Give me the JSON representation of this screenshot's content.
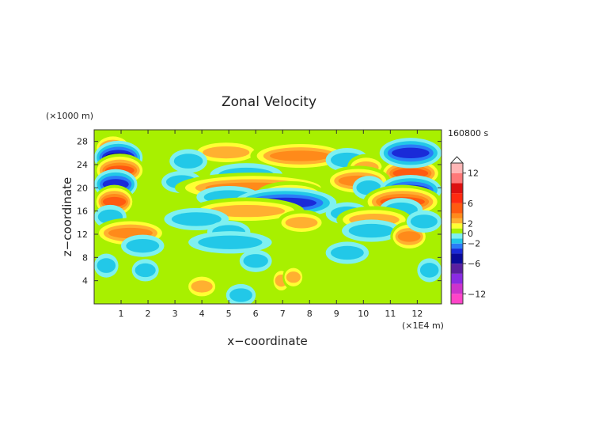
{
  "chart_data": {
    "type": "heatmap",
    "title": "Zonal Velocity",
    "xlabel": "x−coordinate",
    "ylabel": "z−coordinate",
    "x_unit": "(×1E4 m)",
    "y_unit": "(×1000 m)",
    "time_label": "160800 s",
    "xlim": [
      0,
      12.9
    ],
    "ylim": [
      0,
      30
    ],
    "x_ticks": [
      "1",
      "2",
      "3",
      "4",
      "5",
      "6",
      "7",
      "8",
      "9",
      "10",
      "11",
      "12"
    ],
    "y_ticks": [
      "4",
      "8",
      "12",
      "16",
      "20",
      "24",
      "28"
    ],
    "colorbar": {
      "labels": [
        "12",
        "6",
        "2",
        "0",
        "−2",
        "−6",
        "−12"
      ],
      "levels": [
        -14,
        -12,
        -10,
        -8,
        -6,
        -4,
        -3,
        -2,
        -1,
        0,
        1,
        2,
        3,
        4,
        6,
        8,
        10,
        12,
        14
      ],
      "colors": [
        "#ff44c8",
        "#cc33cc",
        "#8a2be2",
        "#5a1fa0",
        "#0a0a9a",
        "#1a2ad8",
        "#2a7cf8",
        "#22c8e8",
        "#7ef0f0",
        "#a8f000",
        "#ffff33",
        "#ffb030",
        "#ff8a1a",
        "#ff5a10",
        "#ff2a10",
        "#dd1010",
        "#ff7878",
        "#ffb6b6"
      ]
    },
    "bands": [
      {
        "z": 26.8,
        "x0": 0.0,
        "x1": 1.4,
        "v": 4
      },
      {
        "z": 25.2,
        "x0": 0.0,
        "x1": 1.8,
        "v": -5
      },
      {
        "z": 23.0,
        "x0": 0.0,
        "x1": 1.9,
        "v": 5
      },
      {
        "z": 20.6,
        "x0": 0.0,
        "x1": 1.6,
        "v": -4
      },
      {
        "z": 17.6,
        "x0": 0.0,
        "x1": 1.5,
        "v": 5
      },
      {
        "z": 15.0,
        "x0": 0.0,
        "x1": 1.2,
        "v": -2
      },
      {
        "z": 12.2,
        "x0": 0.0,
        "x1": 2.7,
        "v": 4
      },
      {
        "z": 10.0,
        "x0": 1.0,
        "x1": 2.6,
        "v": -1.5
      },
      {
        "z": 6.6,
        "x0": 0.0,
        "x1": 0.9,
        "v": -2
      },
      {
        "z": 5.8,
        "x0": 1.4,
        "x1": 2.4,
        "v": -1.5
      },
      {
        "z": 26.1,
        "x0": 3.6,
        "x1": 6.2,
        "v": 3
      },
      {
        "z": 25.5,
        "x0": 5.8,
        "x1": 9.5,
        "v": 4
      },
      {
        "z": 24.6,
        "x0": 2.8,
        "x1": 4.2,
        "v": -2
      },
      {
        "z": 22.2,
        "x0": 4.3,
        "x1": 7.0,
        "v": -2
      },
      {
        "z": 21.0,
        "x0": 2.5,
        "x1": 4.0,
        "v": -1.5
      },
      {
        "z": 20.0,
        "x0": 3.0,
        "x1": 8.8,
        "v": 4
      },
      {
        "z": 18.8,
        "x0": 6.0,
        "x1": 8.6,
        "v": 3
      },
      {
        "z": 18.4,
        "x0": 3.8,
        "x1": 6.2,
        "v": -1.5
      },
      {
        "z": 17.4,
        "x0": 5.2,
        "x1": 9.0,
        "v": -4
      },
      {
        "z": 16.0,
        "x0": 3.5,
        "x1": 7.8,
        "v": 3
      },
      {
        "z": 14.6,
        "x0": 2.6,
        "x1": 5.0,
        "v": -1.5
      },
      {
        "z": 14.0,
        "x0": 6.8,
        "x1": 8.6,
        "v": 2.5
      },
      {
        "z": 12.4,
        "x0": 4.2,
        "x1": 5.8,
        "v": -1.5
      },
      {
        "z": 10.6,
        "x0": 3.5,
        "x1": 6.6,
        "v": -1.5
      },
      {
        "z": 7.4,
        "x0": 5.4,
        "x1": 6.6,
        "v": -1.5
      },
      {
        "z": 4.0,
        "x0": 6.6,
        "x1": 7.3,
        "v": 3
      },
      {
        "z": 3.0,
        "x0": 3.4,
        "x1": 4.6,
        "v": 3
      },
      {
        "z": 1.5,
        "x0": 4.9,
        "x1": 6.0,
        "v": -1.5
      },
      {
        "z": 24.8,
        "x0": 8.6,
        "x1": 10.2,
        "v": -2
      },
      {
        "z": 23.5,
        "x0": 9.4,
        "x1": 10.8,
        "v": 3
      },
      {
        "z": 22.5,
        "x0": 10.6,
        "x1": 12.9,
        "v": 5
      },
      {
        "z": 26.0,
        "x0": 10.6,
        "x1": 12.9,
        "v": -4
      },
      {
        "z": 21.2,
        "x0": 8.6,
        "x1": 11.0,
        "v": 4
      },
      {
        "z": 20.0,
        "x0": 9.6,
        "x1": 10.8,
        "v": -2
      },
      {
        "z": 19.6,
        "x0": 10.6,
        "x1": 12.9,
        "v": -4
      },
      {
        "z": 17.6,
        "x0": 10.0,
        "x1": 12.9,
        "v": 5
      },
      {
        "z": 16.2,
        "x0": 10.6,
        "x1": 12.2,
        "v": -2
      },
      {
        "z": 15.6,
        "x0": 8.6,
        "x1": 10.2,
        "v": -1.5
      },
      {
        "z": 14.5,
        "x0": 9.0,
        "x1": 11.8,
        "v": 3
      },
      {
        "z": 12.6,
        "x0": 9.2,
        "x1": 11.4,
        "v": -1.5
      },
      {
        "z": 11.6,
        "x0": 11.0,
        "x1": 12.4,
        "v": 4
      },
      {
        "z": 8.8,
        "x0": 8.6,
        "x1": 10.2,
        "v": -1.5
      },
      {
        "z": 5.8,
        "x0": 12.0,
        "x1": 12.9,
        "v": -2
      },
      {
        "z": 4.6,
        "x0": 7.0,
        "x1": 7.8,
        "v": 2.5
      },
      {
        "z": 14.2,
        "x0": 11.6,
        "x1": 12.9,
        "v": -1.5
      }
    ]
  }
}
